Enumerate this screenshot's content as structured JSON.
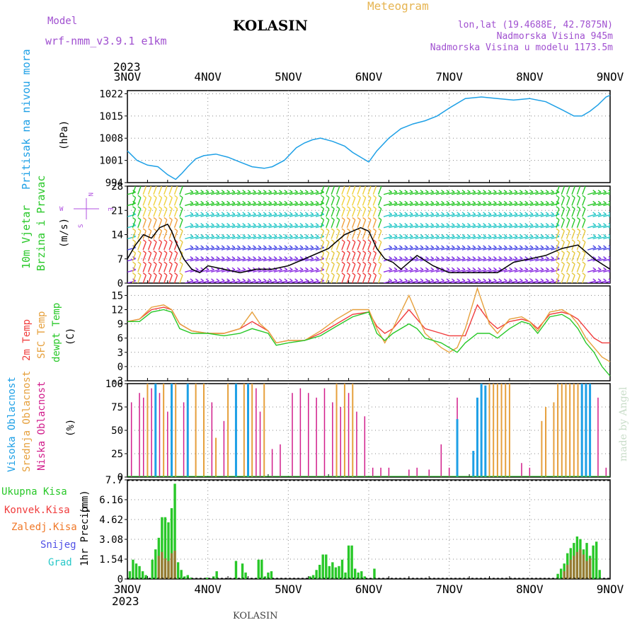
{
  "header": {
    "model_label": "Model",
    "model_name": "wrf-nmm_v3.9.1  e1km",
    "station": "KOLASIN",
    "meteogram": "Meteogram",
    "lonlat": "lon,lat (19.4688E, 42.7875N)",
    "elevation": "Nadmorska Visina 945m",
    "model_elevation": "Nadmorska Visina u modelu 1173.5m",
    "year": "2023",
    "footer_station": "KOLASIN",
    "credit": "made by Angel"
  },
  "colors": {
    "pressure": "#1ea0e6",
    "wind_black": "#000000",
    "temp2m": "#f03c3c",
    "sfc": "#e6a03c",
    "dewpt": "#28c828",
    "high_cloud": "#1ea0e6",
    "mid_cloud": "#e6a03c",
    "low_cloud": "#d21e8c",
    "total_precip": "#28c828",
    "conv_precip": "#f03c3c",
    "freezing": "#f07828",
    "snow": "#5050e6",
    "hail": "#28c8c8"
  },
  "x_axis": {
    "ticks": [
      "3NOV",
      "4NOV",
      "5NOV",
      "6NOV",
      "7NOV",
      "8NOV",
      "9NOV"
    ],
    "range_days": [
      0,
      6
    ]
  },
  "chart_data": [
    {
      "type": "line",
      "id": "pressure",
      "ylabel": "Pritisak na nivou mora",
      "unit": "(hPa)",
      "yticks": [
        "1022",
        "1015",
        "1008",
        "1001",
        "994"
      ],
      "ylim": [
        994,
        1023
      ],
      "series": [
        {
          "x": [
            0,
            0.12,
            0.25,
            0.38,
            0.5,
            0.6,
            0.68,
            0.75,
            0.85,
            0.95,
            1.1,
            1.25,
            1.4,
            1.55,
            1.7,
            1.8,
            1.95,
            2.1,
            2.2,
            2.3,
            2.4,
            2.55,
            2.7,
            2.8,
            2.9,
            3.0,
            3.1,
            3.25,
            3.4,
            3.55,
            3.7,
            3.85,
            4.0,
            4.2,
            4.4,
            4.6,
            4.8,
            5.0,
            5.2,
            5.4,
            5.55,
            5.65,
            5.75,
            5.85,
            5.95,
            6.0
          ],
          "y": [
            1004,
            1001,
            999.5,
            999,
            996.5,
            995,
            997,
            999,
            1001.5,
            1002.5,
            1003,
            1002,
            1000.5,
            999,
            998.5,
            999,
            1001,
            1005,
            1006.5,
            1007.5,
            1008,
            1007,
            1005.5,
            1003.5,
            1002,
            1000.5,
            1004,
            1008,
            1011,
            1012.5,
            1013.5,
            1015,
            1017.5,
            1020.5,
            1021,
            1020.5,
            1020,
            1020.5,
            1019.5,
            1017,
            1015,
            1015,
            1016.5,
            1018.5,
            1021,
            1021.5
          ]
        }
      ]
    },
    {
      "type": "line",
      "id": "wind",
      "ylabel": "10m Vjetar",
      "ylabel2": "Brzina i Pravac",
      "unit": "(m/s)",
      "compass": {
        "n": "N",
        "s": "S",
        "e": "E",
        "w": "W"
      },
      "yticks": [
        "28",
        "21",
        "14",
        "7",
        "0"
      ],
      "ylim": [
        0,
        28
      ],
      "series": [
        {
          "name": "speed",
          "x": [
            0,
            0.1,
            0.2,
            0.3,
            0.4,
            0.5,
            0.55,
            0.6,
            0.7,
            0.8,
            0.9,
            1.0,
            1.2,
            1.4,
            1.6,
            1.8,
            2.0,
            2.2,
            2.4,
            2.5,
            2.6,
            2.7,
            2.8,
            2.9,
            3.0,
            3.1,
            3.2,
            3.3,
            3.4,
            3.6,
            3.8,
            4.0,
            4.2,
            4.4,
            4.6,
            4.8,
            5.0,
            5.2,
            5.4,
            5.6,
            5.8,
            6.0
          ],
          "y": [
            7,
            11,
            14,
            13,
            16,
            17,
            15,
            12,
            7,
            4,
            3,
            5,
            4,
            3,
            4,
            4,
            5,
            7,
            9,
            10,
            12,
            14,
            15,
            16,
            15,
            10,
            7,
            6,
            4,
            8,
            5,
            3,
            3,
            3,
            3,
            6,
            7,
            8,
            10,
            11,
            7,
            4
          ]
        }
      ]
    },
    {
      "type": "line",
      "id": "temperature",
      "labels": [
        "2m Temp",
        "SFC Temp",
        "dewpt Temp"
      ],
      "unit": "(C)",
      "yticks": [
        "15",
        "12",
        "9",
        "6",
        "3",
        "0",
        "-3"
      ],
      "ylim": [
        -3,
        17
      ],
      "series": [
        {
          "name": "2m Temp",
          "x": [
            0,
            0.15,
            0.3,
            0.45,
            0.55,
            0.65,
            0.8,
            1.0,
            1.2,
            1.4,
            1.55,
            1.65,
            1.75,
            1.85,
            2.0,
            2.2,
            2.4,
            2.6,
            2.8,
            3.0,
            3.1,
            3.2,
            3.3,
            3.5,
            3.6,
            3.7,
            3.9,
            4.0,
            4.1,
            4.2,
            4.35,
            4.5,
            4.6,
            4.75,
            4.9,
            5.0,
            5.1,
            5.25,
            5.4,
            5.5,
            5.6,
            5.7,
            5.8,
            5.9,
            6.0
          ],
          "y": [
            9.5,
            10,
            12,
            12.5,
            12,
            9,
            7.5,
            7,
            7,
            8,
            9.5,
            8.5,
            7.5,
            5,
            5.5,
            5.5,
            7,
            9,
            11,
            11.5,
            8.5,
            7,
            8,
            12,
            10,
            8,
            7,
            6.5,
            6.5,
            6.5,
            13,
            9.5,
            8,
            9.5,
            10,
            9.5,
            8,
            11,
            11.5,
            11,
            10,
            8,
            6,
            5,
            5
          ]
        },
        {
          "name": "SFC Temp",
          "x": [
            0,
            0.15,
            0.3,
            0.45,
            0.55,
            0.65,
            0.8,
            1.0,
            1.2,
            1.4,
            1.55,
            1.65,
            1.75,
            1.85,
            2.0,
            2.2,
            2.4,
            2.6,
            2.8,
            3.0,
            3.1,
            3.2,
            3.3,
            3.5,
            3.6,
            3.7,
            3.9,
            4.0,
            4.1,
            4.2,
            4.35,
            4.5,
            4.6,
            4.75,
            4.9,
            5.0,
            5.1,
            5.25,
            5.4,
            5.5,
            5.6,
            5.7,
            5.8,
            5.9,
            6.0
          ],
          "y": [
            9.5,
            10,
            12.5,
            13,
            12,
            9,
            7.5,
            7,
            7,
            8,
            11.5,
            9,
            7.5,
            5,
            5.5,
            5.5,
            7.5,
            10,
            12,
            12,
            8,
            5,
            8,
            15,
            11,
            7,
            4,
            3,
            4,
            8,
            16.5,
            9,
            7,
            10,
            10.5,
            9.5,
            7.5,
            11.5,
            12,
            11,
            9,
            6,
            4,
            2,
            1
          ]
        },
        {
          "name": "dewpt Temp",
          "x": [
            0,
            0.15,
            0.3,
            0.45,
            0.55,
            0.65,
            0.8,
            1.0,
            1.2,
            1.4,
            1.55,
            1.65,
            1.75,
            1.85,
            2.0,
            2.2,
            2.4,
            2.6,
            2.8,
            3.0,
            3.1,
            3.2,
            3.3,
            3.5,
            3.6,
            3.7,
            3.9,
            4.0,
            4.1,
            4.2,
            4.35,
            4.5,
            4.6,
            4.75,
            4.9,
            5.0,
            5.1,
            5.25,
            5.4,
            5.5,
            5.6,
            5.7,
            5.8,
            5.9,
            6.0
          ],
          "y": [
            9.5,
            9.5,
            11.5,
            12,
            11.5,
            8,
            7,
            7,
            6.5,
            7,
            8,
            7.5,
            7,
            4.5,
            5,
            5.5,
            6.5,
            8.5,
            10.5,
            11.5,
            7,
            5.5,
            7,
            9,
            8,
            6,
            5,
            4,
            3,
            5,
            7,
            7,
            6,
            8,
            9.5,
            9,
            7,
            10.5,
            11,
            10,
            8,
            5,
            3,
            0,
            -2
          ]
        }
      ]
    },
    {
      "type": "bar",
      "id": "clouds",
      "labels": [
        "Visoka Oblacnost",
        "Srednja Oblacnost",
        "Niska Oblacnost"
      ],
      "unit": "(%)",
      "yticks": [
        "100",
        "75",
        "50",
        "25",
        "0"
      ],
      "ylim": [
        0,
        100
      ],
      "series": [
        {
          "name": "Niska Oblacnost",
          "x": [
            0.05,
            0.15,
            0.2,
            0.3,
            0.35,
            0.4,
            0.5,
            0.6,
            0.7,
            0.85,
            0.95,
            1.05,
            1.2,
            1.35,
            1.45,
            1.6,
            1.65,
            1.8,
            1.9,
            2.05,
            2.15,
            2.25,
            2.35,
            2.45,
            2.55,
            2.65,
            2.75,
            2.85,
            2.95,
            3.05,
            3.15,
            3.25,
            3.5,
            3.6,
            3.75,
            3.9,
            4.0,
            4.1,
            4.35,
            4.5,
            4.6,
            4.9,
            5.0,
            5.2,
            5.35,
            5.5,
            5.6,
            5.75,
            5.85,
            5.95
          ],
          "y": [
            80,
            90,
            85,
            95,
            85,
            90,
            70,
            95,
            80,
            70,
            90,
            80,
            60,
            85,
            75,
            95,
            70,
            30,
            35,
            90,
            95,
            90,
            85,
            95,
            80,
            75,
            90,
            70,
            65,
            10,
            10,
            10,
            8,
            10,
            8,
            35,
            10,
            85,
            10,
            90,
            30,
            15,
            10,
            65,
            85,
            40,
            85,
            80,
            85,
            10
          ]
        },
        {
          "name": "Srednja Oblacnost",
          "x": [
            0.25,
            0.35,
            0.45,
            0.6,
            0.75,
            0.85,
            0.95,
            1.1,
            1.25,
            1.35,
            1.45,
            1.55,
            1.7,
            2.6,
            2.7,
            2.8,
            4.5,
            4.55,
            4.6,
            4.65,
            4.7,
            4.75,
            5.15,
            5.2,
            5.3,
            5.35,
            5.4,
            5.45,
            5.5,
            5.55,
            5.6,
            5.7
          ],
          "y": [
            100,
            100,
            100,
            100,
            100,
            100,
            100,
            42,
            100,
            100,
            100,
            100,
            100,
            100,
            100,
            100,
            100,
            100,
            100,
            100,
            100,
            100,
            60,
            75,
            80,
            100,
            100,
            100,
            100,
            100,
            100,
            30
          ]
        },
        {
          "name": "Visoka Oblacnost",
          "x": [
            0.35,
            0.55,
            0.75,
            1.35,
            1.5,
            4.1,
            4.3,
            4.35,
            4.4,
            4.45,
            5.65,
            5.7,
            5.75
          ],
          "y": [
            100,
            100,
            100,
            100,
            100,
            62,
            28,
            85,
            100,
            98,
            100,
            100,
            100
          ]
        }
      ]
    },
    {
      "type": "bar",
      "id": "precip",
      "labels": [
        "Ukupna Kisa",
        "Konvek.Kisa",
        "Zaledj.Kisa",
        "Snijeg",
        "Grad"
      ],
      "ylabel": "1hr Precip",
      "unit": "(mm)",
      "yticks": [
        "7.7",
        "6.16",
        "4.62",
        "3.08",
        "1.54",
        "0"
      ],
      "ylim": [
        0,
        7.7
      ],
      "series": [
        {
          "name": "Ukupna Kisa",
          "x": [
            0.03,
            0.07,
            0.11,
            0.15,
            0.19,
            0.23,
            0.31,
            0.35,
            0.39,
            0.43,
            0.47,
            0.51,
            0.55,
            0.59,
            0.63,
            0.67,
            0.71,
            0.75,
            0.79,
            0.99,
            1.07,
            1.11,
            1.35,
            1.43,
            1.47,
            1.63,
            1.67,
            1.71,
            1.75,
            1.79,
            2.27,
            2.31,
            2.35,
            2.39,
            2.43,
            2.47,
            2.51,
            2.55,
            2.59,
            2.63,
            2.67,
            2.71,
            2.75,
            2.79,
            2.83,
            2.87,
            2.91,
            2.95,
            3.07,
            5.35,
            5.39,
            5.43,
            5.47,
            5.51,
            5.55,
            5.59,
            5.63,
            5.67,
            5.71,
            5.75,
            5.79,
            5.83,
            5.87
          ],
          "y": [
            0.6,
            1.5,
            1.2,
            1.0,
            0.6,
            0.3,
            1.5,
            2.3,
            3.2,
            4.8,
            4.8,
            4.4,
            5.5,
            7.4,
            1.3,
            0.7,
            0.2,
            0.3,
            0.1,
            0.1,
            0.2,
            0.6,
            1.4,
            1.2,
            0.5,
            1.5,
            1.5,
            0.2,
            0.5,
            0.6,
            0.2,
            0.3,
            0.7,
            1.1,
            1.9,
            1.9,
            1.0,
            1.3,
            0.9,
            1.0,
            1.5,
            0.5,
            2.6,
            2.6,
            0.8,
            0.5,
            0.6,
            0.2,
            0.8,
            0.4,
            0.8,
            1.2,
            2.0,
            2.4,
            2.8,
            3.3,
            3.1,
            2.3,
            2.8,
            1.8,
            2.6,
            2.9,
            0.7
          ]
        },
        {
          "name": "Konvek.Kisa",
          "x": [
            0.39,
            0.43,
            0.47,
            0.51,
            0.55,
            0.59,
            5.43,
            5.47,
            5.51,
            5.55,
            5.59,
            5.63,
            5.67,
            5.71,
            5.75
          ],
          "y": [
            1.8,
            2.1,
            1.6,
            1.4,
            2.0,
            2.2,
            0.6,
            1.1,
            1.5,
            1.8,
            2.1,
            2.3,
            1.9,
            1.4,
            1.6
          ]
        }
      ]
    }
  ]
}
